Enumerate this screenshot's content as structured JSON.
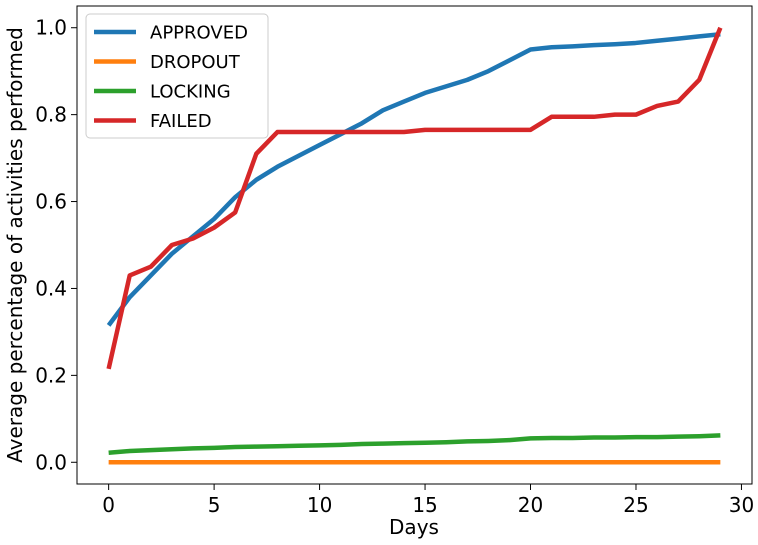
{
  "chart_data": {
    "type": "line",
    "xlabel": "Days",
    "ylabel": "Average percentage of activities performed",
    "xlim": [
      -1.5,
      30.5
    ],
    "ylim": [
      -0.05,
      1.05
    ],
    "xticks": [
      0,
      5,
      10,
      15,
      20,
      25,
      30
    ],
    "yticks": [
      0.0,
      0.2,
      0.4,
      0.6,
      0.8,
      1.0
    ],
    "ytick_labels": [
      "0.0",
      "0.2",
      "0.4",
      "0.6",
      "0.8",
      "1.0"
    ],
    "legend_position": "upper-left",
    "grid": false,
    "x": [
      0,
      1,
      2,
      3,
      4,
      5,
      6,
      7,
      8,
      9,
      10,
      11,
      12,
      13,
      14,
      15,
      16,
      17,
      18,
      19,
      20,
      21,
      22,
      23,
      24,
      25,
      26,
      27,
      28,
      29
    ],
    "series": [
      {
        "name": "APPROVED",
        "color": "#1f77b4",
        "values": [
          0.315,
          0.38,
          0.43,
          0.48,
          0.52,
          0.56,
          0.61,
          0.65,
          0.68,
          0.705,
          0.73,
          0.755,
          0.78,
          0.81,
          0.83,
          0.85,
          0.865,
          0.88,
          0.9,
          0.925,
          0.95,
          0.955,
          0.957,
          0.96,
          0.962,
          0.965,
          0.97,
          0.975,
          0.98,
          0.985
        ]
      },
      {
        "name": "DROPOUT",
        "color": "#ff7f0e",
        "values": [
          0.0,
          0.0,
          0.0,
          0.0,
          0.0,
          0.0,
          0.0,
          0.0,
          0.0,
          0.0,
          0.0,
          0.0,
          0.0,
          0.0,
          0.0,
          0.0,
          0.0,
          0.0,
          0.0,
          0.0,
          0.0,
          0.0,
          0.0,
          0.0,
          0.0,
          0.0,
          0.0,
          0.0,
          0.0,
          0.0
        ]
      },
      {
        "name": "LOCKING",
        "color": "#2ca02c",
        "values": [
          0.022,
          0.026,
          0.028,
          0.03,
          0.032,
          0.033,
          0.035,
          0.036,
          0.037,
          0.038,
          0.039,
          0.04,
          0.042,
          0.043,
          0.044,
          0.045,
          0.046,
          0.048,
          0.049,
          0.051,
          0.055,
          0.056,
          0.056,
          0.057,
          0.057,
          0.058,
          0.058,
          0.059,
          0.06,
          0.062
        ]
      },
      {
        "name": "FAILED",
        "color": "#d62728",
        "values": [
          0.215,
          0.43,
          0.45,
          0.5,
          0.515,
          0.54,
          0.575,
          0.71,
          0.76,
          0.76,
          0.76,
          0.76,
          0.76,
          0.76,
          0.76,
          0.765,
          0.765,
          0.765,
          0.765,
          0.765,
          0.765,
          0.795,
          0.795,
          0.795,
          0.8,
          0.8,
          0.82,
          0.83,
          0.88,
          1.0
        ]
      }
    ]
  }
}
